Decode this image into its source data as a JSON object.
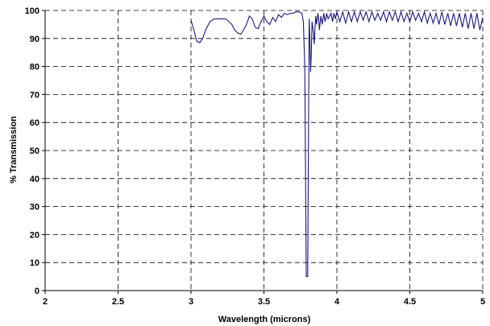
{
  "chart_data": {
    "type": "line",
    "title": "",
    "xlabel": "Wavelength (microns)",
    "ylabel": "% Transmission",
    "xlim": [
      2,
      5
    ],
    "ylim": [
      0,
      100
    ],
    "x_ticks": [
      2,
      2.5,
      3,
      3.5,
      4,
      4.5,
      5
    ],
    "x_tick_labels": [
      "2",
      "2.5",
      "3",
      "3.5",
      "4",
      "4.5",
      "5"
    ],
    "y_ticks": [
      0,
      10,
      20,
      30,
      40,
      50,
      60,
      70,
      80,
      90,
      100
    ],
    "y_tick_labels": [
      "0",
      "10",
      "20",
      "30",
      "40",
      "50",
      "60",
      "70",
      "80",
      "90",
      "100"
    ],
    "grid": true,
    "legend": "none",
    "series_color": "#1a1a7a",
    "series": [
      {
        "x": [
          3.0,
          3.02,
          3.04,
          3.06,
          3.08,
          3.1,
          3.13,
          3.16,
          3.2,
          3.24,
          3.28,
          3.3,
          3.32,
          3.34,
          3.36,
          3.38,
          3.4,
          3.42,
          3.44,
          3.46,
          3.48,
          3.5,
          3.52,
          3.54,
          3.56,
          3.58,
          3.6,
          3.62,
          3.64,
          3.66,
          3.68,
          3.7,
          3.72,
          3.74,
          3.76,
          3.77,
          3.78,
          3.79,
          3.8,
          3.81,
          3.815,
          3.82,
          3.825,
          3.83,
          3.84,
          3.845,
          3.85,
          3.855,
          3.86,
          3.87,
          3.875,
          3.88,
          3.89,
          3.9,
          3.91,
          3.92,
          3.93,
          3.94,
          3.95,
          3.96,
          3.97,
          3.98,
          3.99,
          4.0,
          4.02,
          4.04,
          4.06,
          4.08,
          4.1,
          4.12,
          4.14,
          4.16,
          4.18,
          4.2,
          4.22,
          4.24,
          4.26,
          4.28,
          4.3,
          4.32,
          4.34,
          4.36,
          4.38,
          4.4,
          4.42,
          4.44,
          4.46,
          4.48,
          4.5,
          4.52,
          4.54,
          4.56,
          4.58,
          4.6,
          4.62,
          4.64,
          4.66,
          4.68,
          4.7,
          4.72,
          4.74,
          4.76,
          4.78,
          4.8,
          4.82,
          4.84,
          4.86,
          4.88,
          4.9,
          4.92,
          4.94,
          4.96,
          4.98,
          5.0
        ],
        "y": [
          96.5,
          93,
          89,
          88.5,
          90,
          93,
          96,
          97,
          97,
          97,
          95,
          93,
          92,
          91.5,
          93,
          95,
          98,
          97,
          94,
          93.5,
          96,
          98,
          96,
          95,
          97.5,
          96,
          98.5,
          97.5,
          99,
          98.5,
          99,
          99,
          99.5,
          99.5,
          99,
          96,
          80,
          5,
          5,
          97,
          90,
          78,
          85,
          96,
          92,
          88,
          94,
          98,
          95,
          99,
          97,
          93,
          98,
          95,
          99,
          96,
          99,
          97,
          98,
          99,
          96,
          99,
          97,
          99.5,
          96,
          99.5,
          95.5,
          99.5,
          96,
          99.5,
          96,
          99.5,
          96.5,
          99.5,
          96,
          99.5,
          96.5,
          99,
          96.5,
          99.5,
          96,
          99.5,
          96.5,
          99.5,
          96,
          99.5,
          96,
          99,
          96,
          99.5,
          96.5,
          99,
          96,
          99.5,
          95.5,
          99,
          95.5,
          99,
          95,
          99.5,
          95,
          99,
          94.5,
          99,
          94.5,
          99,
          94,
          99,
          93.5,
          99,
          93.5,
          99,
          93,
          97.5
        ]
      }
    ]
  }
}
